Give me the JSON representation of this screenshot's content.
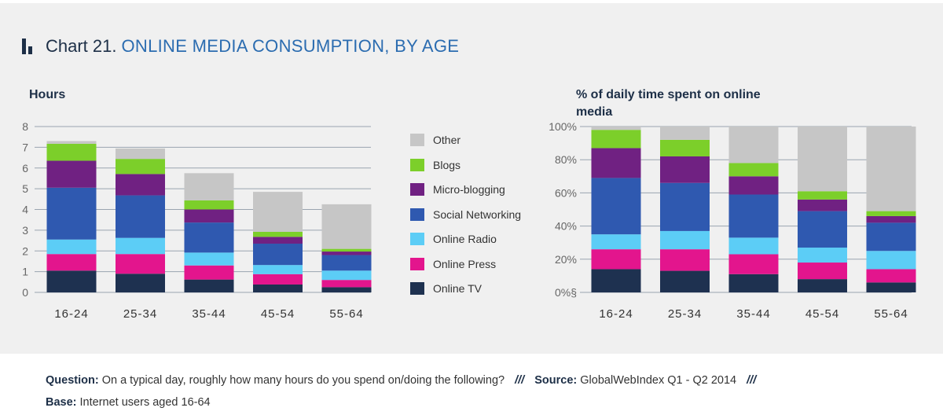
{
  "title": {
    "prefix": "Chart 21.",
    "main": "ONLINE MEDIA CONSUMPTION, BY AGE"
  },
  "colors": {
    "Other": "#c6c6c6",
    "Blogs": "#7ccf2a",
    "Micro-blogging": "#702182",
    "Social Networking": "#2f59b0",
    "Online Radio": "#5ccdf6",
    "Online Press": "#e3158d",
    "Online TV": "#1e3150",
    "grid": "#9aa4b0",
    "axis_text": "#666666"
  },
  "legend": [
    "Other",
    "Blogs",
    "Micro-blogging",
    "Social Networking",
    "Online Radio",
    "Online Press",
    "Online TV"
  ],
  "chart_data": [
    {
      "type": "bar",
      "stacked": true,
      "title": "",
      "ylabel": "Hours",
      "xlabel": "",
      "ylim": [
        0,
        8
      ],
      "yticks": [
        "0",
        "1",
        "2",
        "3",
        "4",
        "5",
        "6",
        "7",
        "8"
      ],
      "categories": [
        "16-24",
        "25-34",
        "35-44",
        "45-54",
        "55-64"
      ],
      "grid": true,
      "series": [
        {
          "name": "Online TV",
          "values": [
            1.05,
            0.9,
            0.62,
            0.38,
            0.25
          ]
        },
        {
          "name": "Online Press",
          "values": [
            0.8,
            0.95,
            0.68,
            0.5,
            0.35
          ]
        },
        {
          "name": "Online Radio",
          "values": [
            0.7,
            0.78,
            0.62,
            0.44,
            0.45
          ]
        },
        {
          "name": "Social Networking",
          "values": [
            2.5,
            2.05,
            1.45,
            1.03,
            0.75
          ]
        },
        {
          "name": "Micro-blogging",
          "values": [
            1.3,
            1.03,
            0.63,
            0.33,
            0.17
          ]
        },
        {
          "name": "Blogs",
          "values": [
            0.82,
            0.73,
            0.44,
            0.24,
            0.13
          ]
        },
        {
          "name": "Other",
          "values": [
            0.13,
            0.5,
            1.31,
            1.93,
            2.15
          ]
        }
      ]
    },
    {
      "type": "bar",
      "stacked": true,
      "title": "",
      "ylabel": "% of daily time spent on online media",
      "xlabel": "",
      "ylim": [
        0,
        100
      ],
      "yticks": [
        "0%§",
        "20%",
        "40%",
        "60%",
        "80%",
        "100%"
      ],
      "categories": [
        "16-24",
        "25-34",
        "35-44",
        "45-54",
        "55-64"
      ],
      "grid": true,
      "series": [
        {
          "name": "Online TV",
          "values": [
            14,
            13,
            11,
            8,
            6
          ]
        },
        {
          "name": "Online Press",
          "values": [
            12,
            13,
            12,
            10,
            8
          ]
        },
        {
          "name": "Online Radio",
          "values": [
            9,
            11,
            10,
            9,
            11
          ]
        },
        {
          "name": "Social Networking",
          "values": [
            34,
            29,
            26,
            22,
            17
          ]
        },
        {
          "name": "Micro-blogging",
          "values": [
            18,
            16,
            11,
            7,
            4
          ]
        },
        {
          "name": "Blogs",
          "values": [
            11,
            10,
            8,
            5,
            3
          ]
        },
        {
          "name": "Other",
          "values": [
            2,
            8,
            22,
            39,
            51
          ]
        }
      ]
    }
  ],
  "footer": {
    "question_label": "Question:",
    "question_text": "On a typical day, roughly how many hours do you spend on/doing the following?",
    "sep1": "///",
    "source_label": "Source:",
    "source_text": "GlobalWebIndex Q1 - Q2 2014",
    "sep2": "///",
    "base_label": "Base:",
    "base_text": "Internet users aged 16-64"
  }
}
